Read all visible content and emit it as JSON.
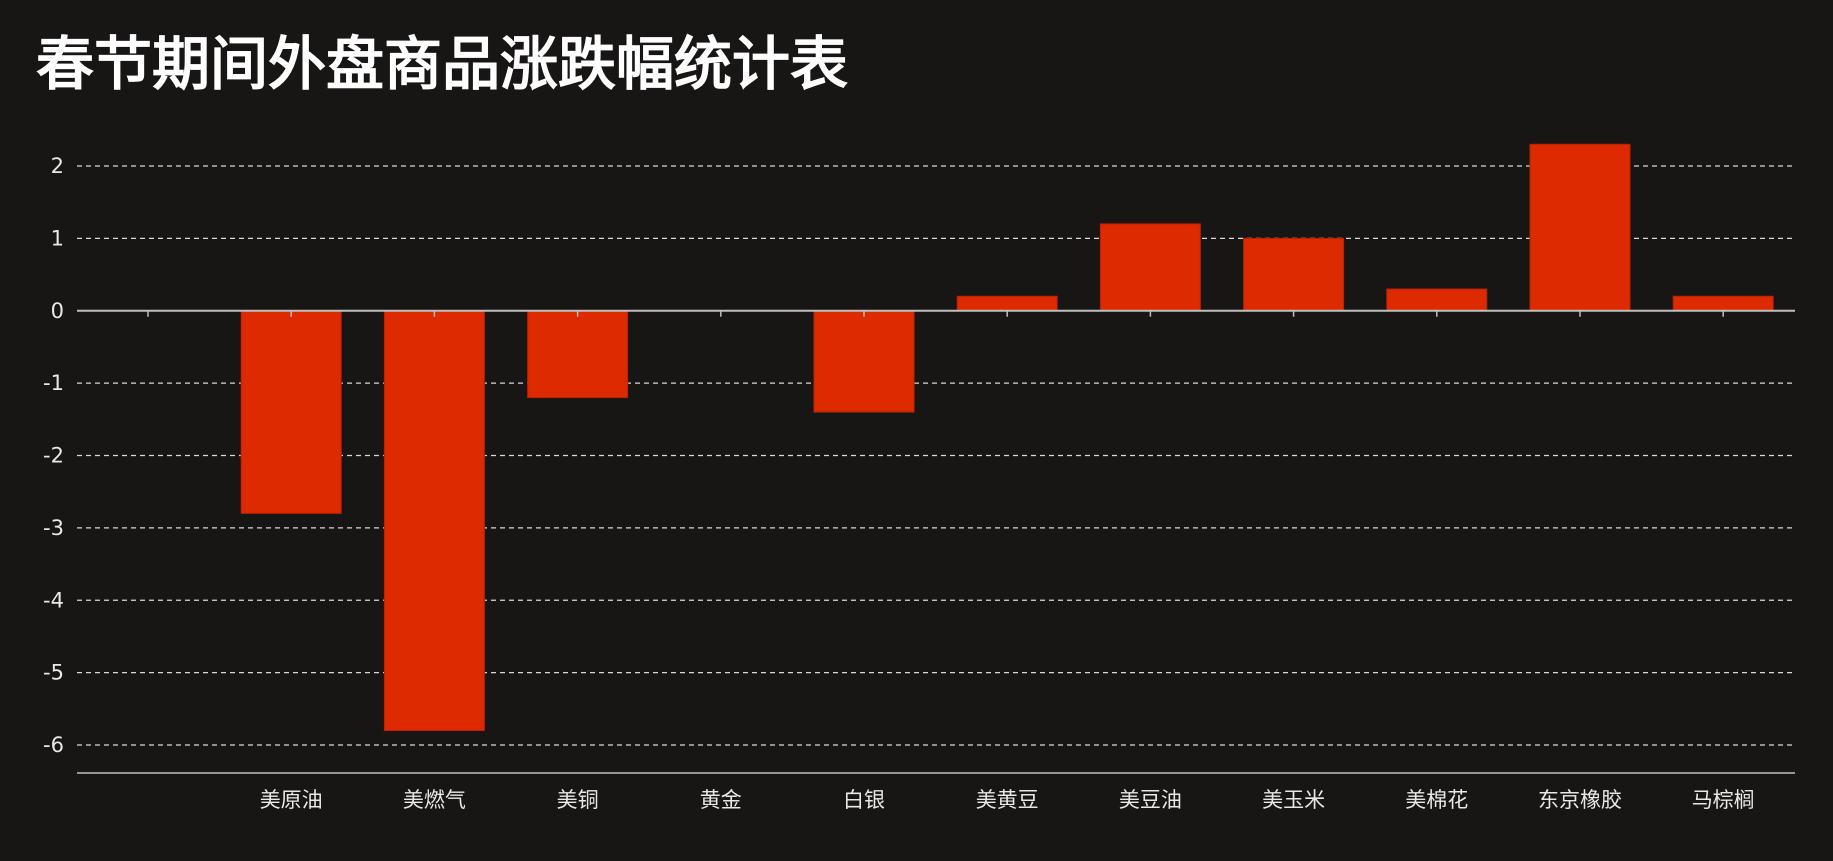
{
  "chart_data": {
    "type": "bar",
    "title": "春节期间外盘商品涨跌幅统计表",
    "xlabel": "",
    "ylabel": "",
    "categories": [
      "",
      "美原油",
      "美燃气",
      "美铜",
      "黄金",
      "白银",
      "美黄豆",
      "美豆油",
      "美玉米",
      "美棉花",
      "东京橡胶",
      "马棕榈"
    ],
    "values": [
      0,
      -2.8,
      -5.8,
      -1.2,
      0,
      -1.4,
      0.2,
      1.2,
      1.0,
      0.3,
      2.3,
      0.2
    ],
    "ylim": [
      -6.4,
      2.4
    ],
    "yticks": [
      2,
      1,
      0,
      -1,
      -2,
      -3,
      -4,
      -5,
      -6
    ],
    "grid": true,
    "grid_style": "dashed",
    "bar_color": "#dd2a00",
    "background": "#181515",
    "text_color": "#e8e8e8"
  }
}
